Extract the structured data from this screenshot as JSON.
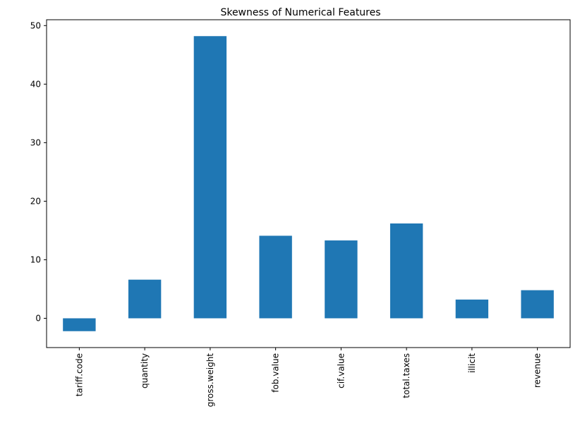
{
  "chart_data": {
    "type": "bar",
    "title": "Skewness of Numerical Features",
    "xlabel": "",
    "ylabel": "",
    "categories": [
      "tariff.code",
      "quantity",
      "gross.weight",
      "fob.value",
      "cif.value",
      "total.taxes",
      "illicit",
      "revenue"
    ],
    "values": [
      -2.2,
      6.6,
      48.2,
      14.1,
      13.3,
      16.2,
      3.2,
      4.8
    ],
    "ylim": [
      -5,
      51
    ],
    "yticks": [
      0,
      10,
      20,
      30,
      40,
      50
    ],
    "bar_color": "#1f77b4",
    "grid": false,
    "legend": "none"
  }
}
